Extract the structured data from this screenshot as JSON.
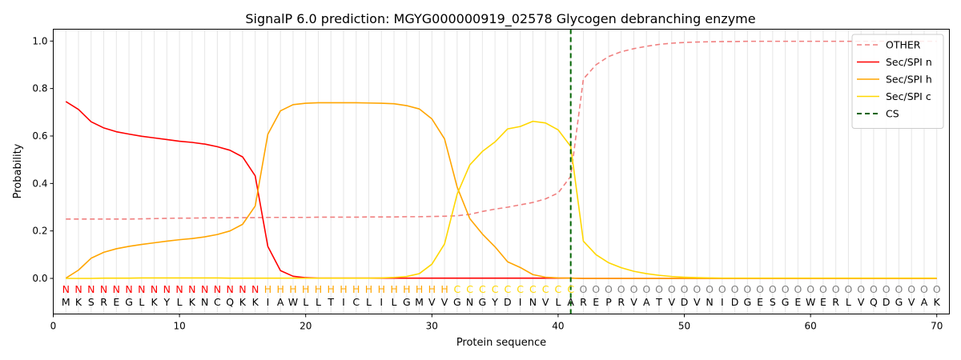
{
  "chart_data": {
    "type": "line",
    "title": "SignalP 6.0 prediction: MGYG000000919_02578 Glycogen debranching enzyme",
    "xlabel": "Protein sequence",
    "ylabel": "Probability",
    "xlim": [
      0,
      71
    ],
    "ylim": [
      -0.15,
      1.05
    ],
    "x_ticks": [
      0,
      10,
      20,
      30,
      40,
      50,
      60,
      70
    ],
    "y_ticks": [
      0.0,
      0.2,
      0.4,
      0.6,
      0.8,
      1.0
    ],
    "x_tick_labels": [
      "0",
      "10",
      "20",
      "30",
      "40",
      "50",
      "60",
      "70"
    ],
    "y_tick_labels": [
      "0.0",
      "0.2",
      "0.4",
      "0.6",
      "0.8",
      "1.0"
    ],
    "grid": "vertical, at each residue",
    "legend_position": "top-right",
    "cleavage_site": 41,
    "sequence": [
      "M",
      "K",
      "S",
      "R",
      "E",
      "G",
      "L",
      "K",
      "Y",
      "L",
      "K",
      "N",
      "C",
      "Q",
      "K",
      "K",
      "I",
      "A",
      "W",
      "L",
      "L",
      "T",
      "I",
      "C",
      "L",
      "I",
      "L",
      "G",
      "M",
      "V",
      "V",
      "G",
      "N",
      "G",
      "Y",
      "D",
      "I",
      "N",
      "V",
      "L",
      "A",
      "R",
      "E",
      "P",
      "R",
      "V",
      "A",
      "T",
      "V",
      "D",
      "V",
      "N",
      "I",
      "D",
      "G",
      "E",
      "S",
      "G",
      "E",
      "W",
      "E",
      "R",
      "L",
      "V",
      "Q",
      "D",
      "G",
      "V",
      "A",
      "K"
    ],
    "labels": [
      "N",
      "N",
      "N",
      "N",
      "N",
      "N",
      "N",
      "N",
      "N",
      "N",
      "N",
      "N",
      "N",
      "N",
      "N",
      "N",
      "H",
      "H",
      "H",
      "H",
      "H",
      "H",
      "H",
      "H",
      "H",
      "H",
      "H",
      "H",
      "H",
      "H",
      "H",
      "C",
      "C",
      "C",
      "C",
      "C",
      "C",
      "C",
      "C",
      "C",
      "C",
      "O",
      "O",
      "O",
      "O",
      "O",
      "O",
      "O",
      "O",
      "O",
      "O",
      "O",
      "O",
      "O",
      "O",
      "O",
      "O",
      "O",
      "O",
      "O",
      "O",
      "O",
      "O",
      "O",
      "O",
      "O",
      "O",
      "O",
      "O",
      "O"
    ],
    "label_colors": {
      "N": "#ff0000",
      "H": "#ffa500",
      "C": "#ffd700",
      "O": "#808080"
    },
    "series": [
      {
        "name": "OTHER",
        "color": "#f08080",
        "dash": "dashed",
        "values": [
          0.25,
          0.25,
          0.25,
          0.25,
          0.25,
          0.25,
          0.251,
          0.252,
          0.253,
          0.254,
          0.254,
          0.255,
          0.255,
          0.256,
          0.256,
          0.256,
          0.257,
          0.257,
          0.257,
          0.257,
          0.258,
          0.258,
          0.258,
          0.258,
          0.259,
          0.259,
          0.259,
          0.26,
          0.26,
          0.261,
          0.262,
          0.264,
          0.27,
          0.282,
          0.292,
          0.3,
          0.31,
          0.32,
          0.335,
          0.36,
          0.43,
          0.84,
          0.9,
          0.935,
          0.955,
          0.968,
          0.978,
          0.986,
          0.991,
          0.994,
          0.996,
          0.997,
          0.998,
          0.998,
          0.999,
          0.999,
          0.999,
          0.999,
          0.999,
          0.999,
          0.999,
          0.999,
          0.999,
          0.999,
          0.999,
          0.999,
          0.999,
          0.999,
          0.999,
          0.999
        ]
      },
      {
        "name": "Sec/SPI n",
        "color": "#ff0000",
        "dash": "solid",
        "values": [
          0.745,
          0.712,
          0.66,
          0.634,
          0.618,
          0.608,
          0.599,
          0.592,
          0.585,
          0.578,
          0.573,
          0.566,
          0.555,
          0.54,
          0.512,
          0.432,
          0.135,
          0.033,
          0.009,
          0.003,
          0.001,
          0.001,
          0.001,
          0.001,
          0.001,
          0.001,
          0.001,
          0.001,
          0.001,
          0.001,
          0.001,
          0.001,
          0.001,
          0.001,
          0.001,
          0.001,
          0.001,
          0.001,
          0.001,
          0.001,
          0.001,
          0.0,
          0.0,
          0.0,
          0.0,
          0.0,
          0.0,
          0.0,
          0.0,
          0.0,
          0.0,
          0.0,
          0.0,
          0.0,
          0.0,
          0.0,
          0.0,
          0.0,
          0.0,
          0.0,
          0.0,
          0.0,
          0.0,
          0.0,
          0.0,
          0.0,
          0.0,
          0.0,
          0.0,
          0.0
        ]
      },
      {
        "name": "Sec/SPI h",
        "color": "#ffa500",
        "dash": "solid",
        "values": [
          0.001,
          0.035,
          0.085,
          0.11,
          0.125,
          0.135,
          0.143,
          0.15,
          0.157,
          0.163,
          0.168,
          0.175,
          0.185,
          0.2,
          0.228,
          0.305,
          0.607,
          0.706,
          0.732,
          0.738,
          0.74,
          0.74,
          0.74,
          0.74,
          0.739,
          0.738,
          0.736,
          0.728,
          0.714,
          0.672,
          0.588,
          0.385,
          0.252,
          0.187,
          0.133,
          0.07,
          0.046,
          0.016,
          0.005,
          0.002,
          0.001,
          0.0,
          0.0,
          0.0,
          0.0,
          0.0,
          0.0,
          0.0,
          0.0,
          0.0,
          0.0,
          0.0,
          0.0,
          0.0,
          0.0,
          0.0,
          0.0,
          0.0,
          0.0,
          0.0,
          0.0,
          0.0,
          0.0,
          0.0,
          0.0,
          0.0,
          0.0,
          0.0,
          0.0,
          0.0
        ]
      },
      {
        "name": "Sec/SPI c",
        "color": "#ffd700",
        "dash": "solid",
        "values": [
          0.0,
          0.0,
          0.0,
          0.001,
          0.001,
          0.001,
          0.002,
          0.002,
          0.002,
          0.002,
          0.002,
          0.002,
          0.002,
          0.001,
          0.001,
          0.001,
          0.001,
          0.001,
          0.001,
          0.001,
          0.001,
          0.001,
          0.001,
          0.001,
          0.001,
          0.002,
          0.004,
          0.008,
          0.02,
          0.06,
          0.145,
          0.355,
          0.478,
          0.535,
          0.575,
          0.63,
          0.64,
          0.662,
          0.655,
          0.626,
          0.556,
          0.157,
          0.1,
          0.066,
          0.045,
          0.03,
          0.02,
          0.013,
          0.008,
          0.005,
          0.003,
          0.002,
          0.001,
          0.001,
          0.001,
          0.001,
          0.001,
          0.001,
          0.001,
          0.001,
          0.001,
          0.001,
          0.001,
          0.001,
          0.001,
          0.001,
          0.001,
          0.001,
          0.001,
          0.001
        ]
      },
      {
        "name": "CS",
        "color": "#006400",
        "dash": "dashed",
        "type": "vline",
        "x": 41
      }
    ]
  }
}
